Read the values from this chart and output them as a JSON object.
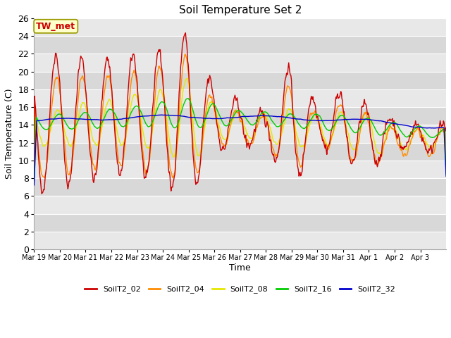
{
  "title": "Soil Temperature Set 2",
  "xlabel": "Time",
  "ylabel": "Soil Temperature (C)",
  "ylim": [
    0,
    26
  ],
  "yticks": [
    0,
    2,
    4,
    6,
    8,
    10,
    12,
    14,
    16,
    18,
    20,
    22,
    24,
    26
  ],
  "series_colors": {
    "SoilT2_02": "#cc0000",
    "SoilT2_04": "#ff8c00",
    "SoilT2_08": "#e6e600",
    "SoilT2_16": "#00cc00",
    "SoilT2_32": "#0000cc"
  },
  "series_names": [
    "SoilT2_02",
    "SoilT2_04",
    "SoilT2_08",
    "SoilT2_16",
    "SoilT2_32"
  ],
  "annotation_text": "TW_met",
  "annotation_color": "#cc0000",
  "annotation_bg": "#ffffcc",
  "annotation_border": "#999900",
  "bg_bands": [
    "#e8e8e8",
    "#d8d8d8"
  ],
  "grid_color": "#ffffff",
  "title_fontsize": 11,
  "axis_fontsize": 9,
  "tick_fontsize": 9,
  "legend_fontsize": 9,
  "line_width": 1.0,
  "xtick_labels": [
    "Mar 19",
    "Mar 20",
    "Mar 21",
    "Mar 22",
    "Mar 23",
    "Mar 24",
    "Mar 25",
    "Mar 26",
    "Mar 27",
    "Mar 28",
    "Mar 29",
    "Mar 30",
    "Mar 31",
    "Apr 1",
    "Apr 2",
    "Apr 3"
  ],
  "n_days": 16,
  "figsize": [
    6.4,
    4.8
  ],
  "dpi": 100
}
